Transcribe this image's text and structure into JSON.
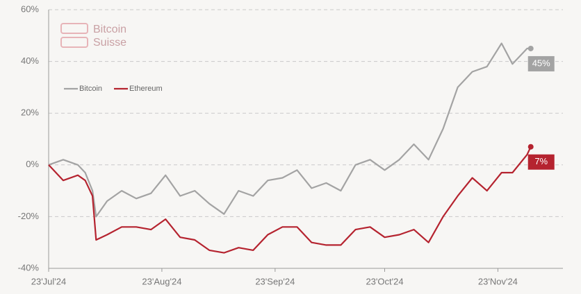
{
  "chart_data": {
    "type": "line",
    "watermark": [
      "Bitcoin",
      "Suisse"
    ],
    "x": [
      "2024-07-23",
      "2024-07-27",
      "2024-07-31",
      "2024-08-02",
      "2024-08-04",
      "2024-08-05",
      "2024-08-08",
      "2024-08-12",
      "2024-08-16",
      "2024-08-20",
      "2024-08-24",
      "2024-08-28",
      "2024-09-01",
      "2024-09-05",
      "2024-09-09",
      "2024-09-13",
      "2024-09-17",
      "2024-09-21",
      "2024-09-25",
      "2024-09-29",
      "2024-10-03",
      "2024-10-07",
      "2024-10-11",
      "2024-10-15",
      "2024-10-19",
      "2024-10-23",
      "2024-10-27",
      "2024-10-31",
      "2024-11-04",
      "2024-11-08",
      "2024-11-12",
      "2024-11-16",
      "2024-11-20",
      "2024-11-24",
      "2024-11-27",
      "2024-12-01",
      "2024-12-02"
    ],
    "series": [
      {
        "name": "Bitcoin",
        "color": "#a3a3a3",
        "values": [
          0,
          2,
          0,
          -3,
          -10,
          -20,
          -14,
          -10,
          -13,
          -11,
          -4,
          -12,
          -10,
          -15,
          -19,
          -10,
          -12,
          -6,
          -5,
          -2,
          -9,
          -7,
          -10,
          0,
          2,
          -2,
          2,
          8,
          2,
          14,
          30,
          36,
          38,
          47,
          39,
          45,
          45
        ],
        "value_labels": [
          null,
          null,
          null,
          null,
          null,
          null,
          null,
          null,
          null,
          null,
          null,
          null,
          null,
          null,
          null,
          null,
          null,
          null,
          null,
          null,
          null,
          null,
          null,
          null,
          null,
          null,
          null,
          null,
          null,
          null,
          null,
          null,
          null,
          null,
          null,
          null,
          "45%"
        ]
      },
      {
        "name": "Ethereum",
        "color": "#b5232f",
        "values": [
          0,
          -6,
          -4,
          -6,
          -12,
          -29,
          -27,
          -24,
          -24,
          -25,
          -21,
          -28,
          -29,
          -33,
          -34,
          -32,
          -33,
          -27,
          -24,
          -24,
          -30,
          -31,
          -31,
          -25,
          -24,
          -28,
          -27,
          -25,
          -30,
          -20,
          -12,
          -5,
          -10,
          -3,
          -3,
          4,
          7
        ],
        "value_labels": [
          null,
          null,
          null,
          null,
          null,
          null,
          null,
          null,
          null,
          null,
          null,
          null,
          null,
          null,
          null,
          null,
          null,
          null,
          null,
          null,
          null,
          null,
          null,
          null,
          null,
          null,
          null,
          null,
          null,
          null,
          null,
          null,
          null,
          null,
          null,
          null,
          "7%"
        ]
      }
    ],
    "xlim": [
      "2024-07-23",
      "2024-12-07"
    ],
    "xticks": [
      {
        "value": "2024-07-23",
        "label": "23'Jul'24"
      },
      {
        "value": "2024-08-23",
        "label": "23'Aug'24"
      },
      {
        "value": "2024-09-23",
        "label": "23'Sep'24"
      },
      {
        "value": "2024-10-23",
        "label": "23'Oct'24"
      },
      {
        "value": "2024-11-23",
        "label": "23'Nov'24"
      }
    ],
    "ylim": [
      -40,
      60
    ],
    "yticks": [
      {
        "value": -40,
        "label": "-40%"
      },
      {
        "value": -20,
        "label": "-20%"
      },
      {
        "value": 0,
        "label": "0%"
      },
      {
        "value": 20,
        "label": "20%"
      },
      {
        "value": 40,
        "label": "40%"
      },
      {
        "value": 60,
        "label": "60%"
      }
    ],
    "grid": true,
    "legend": "upper left"
  }
}
